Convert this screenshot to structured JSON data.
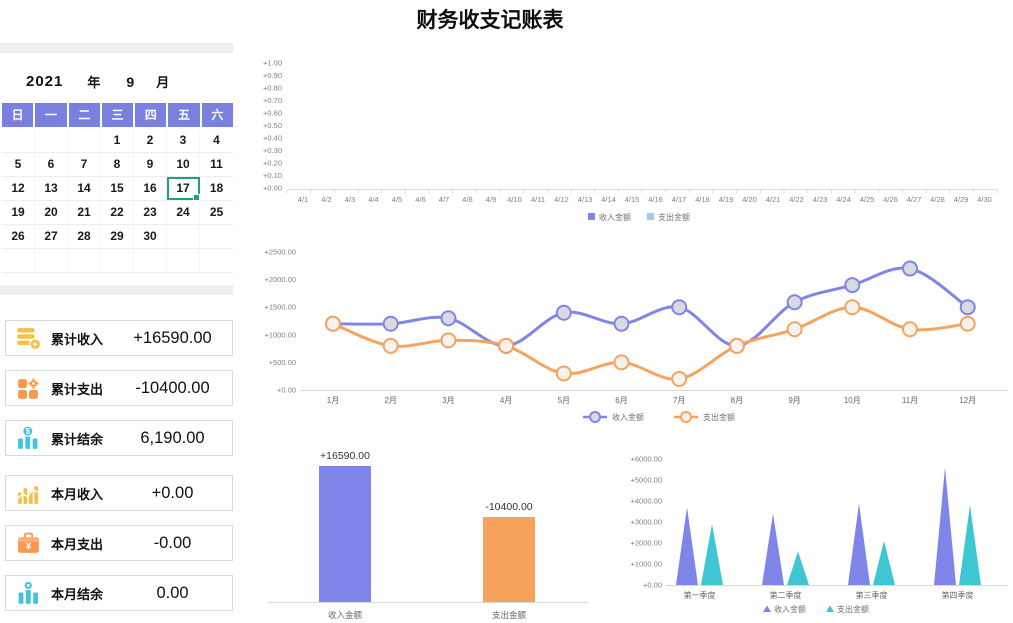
{
  "title": "财务收支记账表",
  "colors": {
    "income_purple": "#8085e9",
    "expense_orange": "#f7a35c",
    "expense_lightblue": "#a5c8f1",
    "expense_teal": "#3ec6d3",
    "calendar_header": "#7b80e0",
    "selection_green": "#1aa76a",
    "icon_yellow": "#F2C142",
    "icon_orange": "#F8994F",
    "icon_teal": "#43C4DA",
    "axis_gray": "#d9d9d9"
  },
  "calendar": {
    "year": "2021",
    "year_label": "年",
    "month": "9",
    "month_label": "月",
    "weekdays": [
      "日",
      "一",
      "二",
      "三",
      "四",
      "五",
      "六"
    ],
    "weeks": [
      [
        "",
        "",
        "",
        "1",
        "2",
        "3",
        "4"
      ],
      [
        "5",
        "6",
        "7",
        "8",
        "9",
        "10",
        "11"
      ],
      [
        "12",
        "13",
        "14",
        "15",
        "16",
        "17",
        "18"
      ],
      [
        "19",
        "20",
        "21",
        "22",
        "23",
        "24",
        "25"
      ],
      [
        "26",
        "27",
        "28",
        "29",
        "30",
        "",
        ""
      ],
      [
        "",
        "",
        "",
        "",
        "",
        "",
        ""
      ]
    ],
    "selected_day": "17"
  },
  "stats": [
    {
      "label": "累计收入",
      "value": "+16590.00",
      "icon": "coins-plus-icon",
      "color": "#F2C142"
    },
    {
      "label": "累计支出",
      "value": "-10400.00",
      "icon": "blocks-gear-icon",
      "color": "#F8994F"
    },
    {
      "label": "累计结余",
      "value": "6,190.00",
      "icon": "bars-dollar-icon",
      "color": "#43C4DA"
    },
    {
      "label": "本月收入",
      "value": "+0.00",
      "icon": "chart-line-icon",
      "color": "#F2C142"
    },
    {
      "label": "本月支出",
      "value": "-0.00",
      "icon": "case-yen-icon",
      "color": "#F8994F"
    },
    {
      "label": "本月结余",
      "value": "0.00",
      "icon": "bars-badge-icon",
      "color": "#43C4DA"
    }
  ],
  "chart_data": [
    {
      "id": "daily",
      "type": "line",
      "x": [
        "4/1",
        "4/2",
        "4/3",
        "4/4",
        "4/5",
        "4/6",
        "4/7",
        "4/8",
        "4/9",
        "4/10",
        "4/11",
        "4/12",
        "4/13",
        "4/14",
        "4/15",
        "4/16",
        "4/17",
        "4/18",
        "4/19",
        "4/20",
        "4/21",
        "4/22",
        "4/23",
        "4/24",
        "4/25",
        "4/26",
        "4/27",
        "4/28",
        "4/29",
        "4/30"
      ],
      "series": [
        {
          "name": "收入金额",
          "color": "#8085e9",
          "values": []
        },
        {
          "name": "支出金额",
          "color": "#a5c8f1",
          "values": []
        }
      ],
      "ylim": [
        0,
        1
      ],
      "yticks": [
        "+1.00",
        "+0.90",
        "+0.80",
        "+0.70",
        "+0.60",
        "+0.50",
        "+0.40",
        "+0.30",
        "+0.20",
        "+0.10",
        "+0.00"
      ],
      "grid": false,
      "legend_position": "bottom"
    },
    {
      "id": "monthly",
      "type": "line",
      "categories": [
        "1月",
        "2月",
        "3月",
        "4月",
        "5月",
        "6月",
        "7月",
        "8月",
        "9月",
        "10月",
        "11月",
        "12月"
      ],
      "series": [
        {
          "name": "收入金额",
          "color": "#8085e9",
          "marker_fill": "#d9d9e0",
          "values": [
            1200,
            1200,
            1300,
            800,
            1400,
            1200,
            1500,
            800,
            1590,
            1900,
            2200,
            1500
          ]
        },
        {
          "name": "支出金额",
          "color": "#f7a35c",
          "marker_fill": "#f6f3ef",
          "values": [
            1200,
            800,
            900,
            800,
            300,
            500,
            200,
            800,
            1100,
            1500,
            1100,
            1200
          ]
        }
      ],
      "ylim": [
        0,
        2500
      ],
      "yticks": [
        "+2500.00",
        "+2000.00",
        "+1500.00",
        "+1000.00",
        "+500.00",
        "+0.00"
      ],
      "ytick_values": [
        2500,
        2000,
        1500,
        1000,
        500,
        0
      ],
      "grid": false,
      "legend_position": "bottom"
    },
    {
      "id": "totals",
      "type": "bar",
      "categories": [
        "收入金额",
        "支出金额"
      ],
      "values": [
        16590,
        10400
      ],
      "bar_colors": [
        "#8085e9",
        "#f7a35c"
      ],
      "data_labels": [
        "+16590.00",
        "-10400.00"
      ],
      "ylim": [
        0,
        17000
      ],
      "grid": false
    },
    {
      "id": "quarterly",
      "type": "triangle-bar",
      "categories": [
        "第一季度",
        "第二季度",
        "第三季度",
        "第四季度"
      ],
      "series": [
        {
          "name": "收入金额",
          "color": "#8085e9",
          "values": [
            3700,
            3400,
            3890,
            5600
          ]
        },
        {
          "name": "支出金额",
          "color": "#3ec6d3",
          "values": [
            2900,
            1600,
            2100,
            3800
          ]
        }
      ],
      "ylim": [
        0,
        6000
      ],
      "yticks": [
        "+6000.00",
        "+5000.00",
        "+4000.00",
        "+3000.00",
        "+2000.00",
        "+1000.00",
        "+0.00"
      ],
      "ytick_values": [
        6000,
        5000,
        4000,
        3000,
        2000,
        1000,
        0
      ],
      "grid": false,
      "legend_position": "bottom"
    }
  ]
}
